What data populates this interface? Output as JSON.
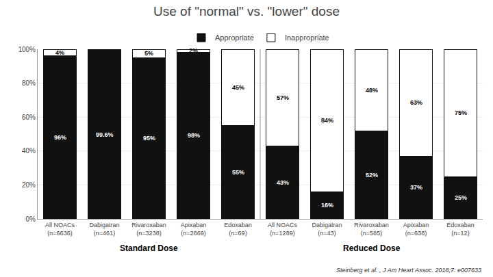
{
  "chart_data": {
    "type": "bar",
    "title": "Use of \"normal\" vs. \"lower\" dose",
    "subtitle": "Steinberg et al. , J Am Heart Assoc. 2018;7: e007633",
    "categories": [
      "All NOACs\n(n=6636)",
      "Dabigatran\n(n=461)",
      "Rivaroxaban\n(n=3238)",
      "Apixaban\n(n=2869)",
      "Edoxaban\n(n=69)",
      "All NOACs\n(n=1289)",
      "Dabigatran\n(n=43)",
      "Rivaroxaban\n(n=585)",
      "Apixaban\n(n=638)",
      "Edoxaban\n(n=12)"
    ],
    "groups": [
      {
        "name": "Standard Dose",
        "categories": [
          "All NOACs\n(n=6636)",
          "Dabigatran\n(n=461)",
          "Rivaroxaban\n(n=3238)",
          "Apixaban\n(n=2869)",
          "Edoxaban\n(n=69)"
        ]
      },
      {
        "name": "Reduced Dose",
        "categories": [
          "All NOACs\n(n=1289)",
          "Dabigatran\n(n=43)",
          "Rivaroxaban\n(n=585)",
          "Apixaban\n(n=638)",
          "Edoxaban\n(n=12)"
        ]
      }
    ],
    "series": [
      {
        "name": "Appropriate",
        "color": "#111111",
        "values": [
          96,
          99.6,
          95,
          98,
          55,
          43,
          16,
          52,
          37,
          25
        ],
        "value_labels": [
          "96%",
          "99.6%",
          "95%",
          "98%",
          "55%",
          "43%",
          "16%",
          "52%",
          "37%",
          "25%"
        ]
      },
      {
        "name": "Inappropriate",
        "color": "#ffffff",
        "values": [
          4,
          0.4,
          5,
          2,
          45,
          57,
          84,
          48,
          63,
          75
        ],
        "value_labels": [
          "4%",
          null,
          "5%",
          "2%",
          "45%",
          "57%",
          "84%",
          "48%",
          "63%",
          "75%"
        ]
      }
    ],
    "stacked": true,
    "data_labels": true,
    "ylim": [
      0,
      100
    ],
    "yticks": [
      {
        "value": 0,
        "label": "0%"
      },
      {
        "value": 20,
        "label": "20%"
      },
      {
        "value": 40,
        "label": "40%"
      },
      {
        "value": 60,
        "label": "60%"
      },
      {
        "value": 80,
        "label": "80%"
      },
      {
        "value": 100,
        "label": "100%"
      }
    ],
    "grid": true,
    "legend": "top"
  }
}
